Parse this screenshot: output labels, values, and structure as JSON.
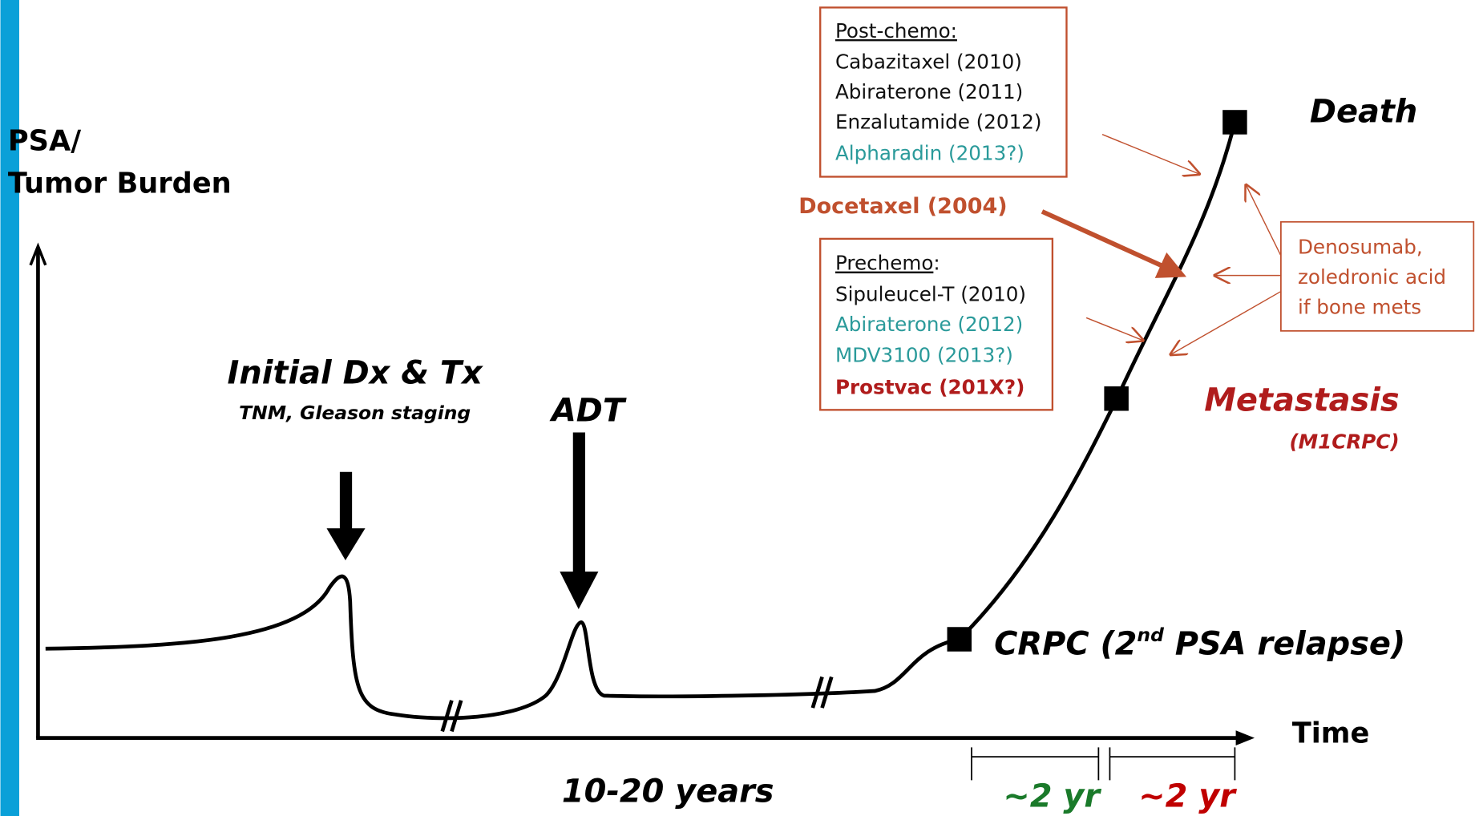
{
  "axis": {
    "y_label": [
      "PSA/",
      "Tumor Burden"
    ],
    "x_label": "Time"
  },
  "events": {
    "initial": {
      "title": "Initial Dx & Tx",
      "subtitle": "TNM, Gleason staging"
    },
    "adt": "ADT",
    "crpc": [
      "CRPC (2",
      "nd",
      " PSA relapse)"
    ],
    "death": "Death",
    "metastasis": {
      "title": "Metastasis",
      "subtitle": "(M1CRPC)"
    }
  },
  "durations": {
    "main": "10-20 years",
    "first": "~2 yr",
    "second": "~2 yr"
  },
  "post_chemo": {
    "heading": "Post-chemo:",
    "items": [
      "Cabazitaxel (2010)",
      "Abiraterone (2011)",
      "Enzalutamide (2012)",
      "Alpharadin (2013?)"
    ]
  },
  "docetaxel": "Docetaxel (2004)",
  "prechemo": {
    "heading": "Prechemo",
    "colon": ":",
    "items": [
      "Sipuleucel-T (2010)",
      "Abiraterone (2012)",
      "MDV3100 (2013?)",
      "Prostvac (201X?)"
    ]
  },
  "bone": [
    "Denosumab,",
    "zoledronic acid",
    "if bone mets"
  ]
}
